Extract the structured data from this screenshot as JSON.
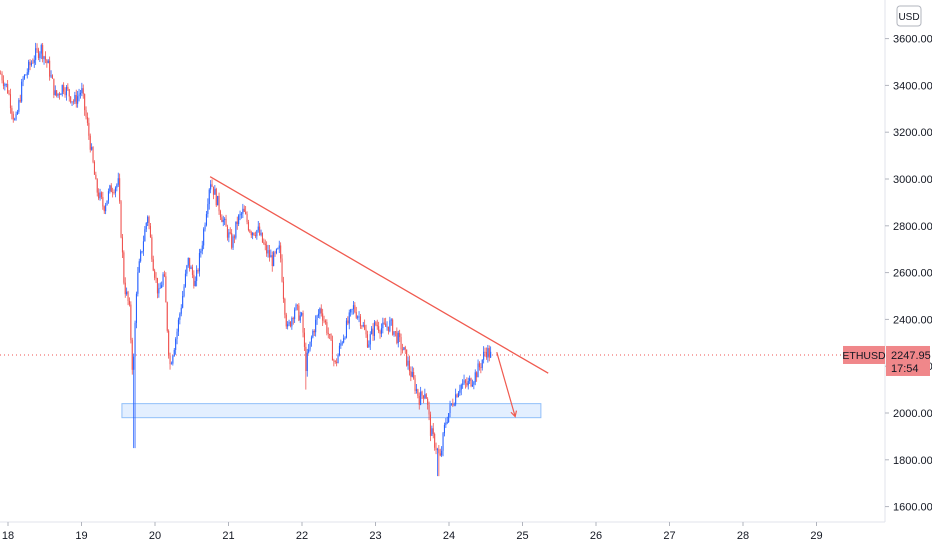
{
  "header": {
    "currency_button": "USD"
  },
  "price_tag": {
    "symbol": "ETHUSD",
    "price": "2247.95",
    "countdown": "17:54"
  },
  "colors": {
    "up": "#2962ff",
    "down": "#ef5350",
    "trendline": "#f05a4f",
    "zone_fill": "#e3efff",
    "zone_border": "#90bff9",
    "price_tag_bg": "#f0878a",
    "axis_text": "#131722"
  },
  "chart_data": {
    "type": "candlestick",
    "x_tick_labels": [
      "18",
      "19",
      "20",
      "21",
      "22",
      "23",
      "24",
      "25",
      "26",
      "27",
      "28",
      "29"
    ],
    "y_tick_labels": [
      "1600.00",
      "1800.00",
      "2000.00",
      "2200.00",
      "2400.00",
      "2600.00",
      "2800.00",
      "3000.00",
      "3200.00",
      "3400.00",
      "3600.00"
    ],
    "y_ticks": [
      1600,
      1800,
      2000,
      2200,
      2400,
      2600,
      2800,
      3000,
      3200,
      3400,
      3600
    ],
    "xlim": [
      17.9,
      29.6
    ],
    "ylim": [
      1550,
      3800
    ],
    "last_price": 2247.95,
    "price_path": [
      [
        17.9,
        3450
      ],
      [
        18.0,
        3380
      ],
      [
        18.1,
        3230
      ],
      [
        18.2,
        3420
      ],
      [
        18.35,
        3520
      ],
      [
        18.45,
        3560
      ],
      [
        18.55,
        3480
      ],
      [
        18.65,
        3350
      ],
      [
        18.75,
        3400
      ],
      [
        18.9,
        3330
      ],
      [
        19.0,
        3380
      ],
      [
        19.12,
        3150
      ],
      [
        19.2,
        2960
      ],
      [
        19.3,
        2880
      ],
      [
        19.4,
        2960
      ],
      [
        19.5,
        2980
      ],
      [
        19.58,
        2550
      ],
      [
        19.65,
        2450
      ],
      [
        19.7,
        2150
      ],
      [
        19.75,
        2550
      ],
      [
        19.82,
        2700
      ],
      [
        19.9,
        2850
      ],
      [
        19.97,
        2650
      ],
      [
        20.05,
        2500
      ],
      [
        20.12,
        2600
      ],
      [
        20.2,
        2200
      ],
      [
        20.3,
        2350
      ],
      [
        20.45,
        2650
      ],
      [
        20.55,
        2550
      ],
      [
        20.65,
        2750
      ],
      [
        20.75,
        3000
      ],
      [
        20.85,
        2900
      ],
      [
        20.95,
        2800
      ],
      [
        21.05,
        2720
      ],
      [
        21.12,
        2820
      ],
      [
        21.2,
        2860
      ],
      [
        21.3,
        2780
      ],
      [
        21.4,
        2780
      ],
      [
        21.5,
        2700
      ],
      [
        21.6,
        2650
      ],
      [
        21.7,
        2700
      ],
      [
        21.75,
        2500
      ],
      [
        21.8,
        2350
      ],
      [
        21.9,
        2450
      ],
      [
        22.0,
        2400
      ],
      [
        22.05,
        2200
      ],
      [
        22.15,
        2350
      ],
      [
        22.25,
        2450
      ],
      [
        22.35,
        2350
      ],
      [
        22.45,
        2200
      ],
      [
        22.55,
        2320
      ],
      [
        22.7,
        2450
      ],
      [
        22.8,
        2400
      ],
      [
        22.9,
        2300
      ],
      [
        23.0,
        2380
      ],
      [
        23.1,
        2360
      ],
      [
        23.2,
        2380
      ],
      [
        23.3,
        2320
      ],
      [
        23.4,
        2250
      ],
      [
        23.5,
        2150
      ],
      [
        23.6,
        2060
      ],
      [
        23.68,
        2100
      ],
      [
        23.75,
        1920
      ],
      [
        23.82,
        1860
      ],
      [
        23.88,
        1800
      ],
      [
        23.95,
        1960
      ],
      [
        24.05,
        2050
      ],
      [
        24.15,
        2120
      ],
      [
        24.25,
        2120
      ],
      [
        24.35,
        2160
      ],
      [
        24.42,
        2200
      ],
      [
        24.5,
        2270
      ],
      [
        24.58,
        2240
      ]
    ],
    "wick_extremes": [
      {
        "x": 19.72,
        "low": 1850
      },
      {
        "x": 22.05,
        "low": 2100
      },
      {
        "x": 23.85,
        "low": 1730
      },
      {
        "x": 18.4,
        "high": 3580
      }
    ],
    "annotations": {
      "trendline": {
        "from": [
          20.75,
          3010
        ],
        "to": [
          25.35,
          2170
        ]
      },
      "support_zone": {
        "x_from": 19.55,
        "x_to": 25.25,
        "y_low": 1980,
        "y_high": 2040
      },
      "projection_arrow": {
        "from": [
          24.65,
          2260
        ],
        "to": [
          24.9,
          1985
        ]
      }
    }
  }
}
